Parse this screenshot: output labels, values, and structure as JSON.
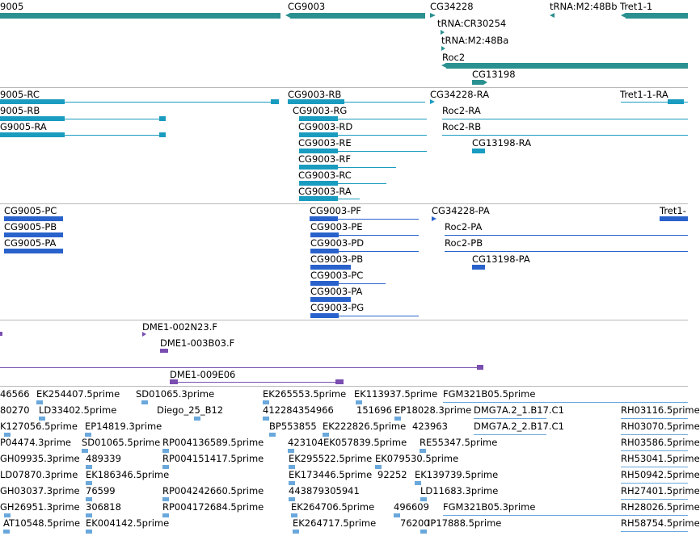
{
  "colors": {
    "gene": "#2a9090",
    "transcript": "#1a9cc0",
    "protein": "#2a62cc",
    "clone": "#7a4db0",
    "est": "#6aa8dc",
    "separator": "#b8b8b8"
  },
  "gene_track": {
    "labels": [
      "9005",
      "CG9003",
      "CG34228",
      "tRNA:M2:48Bb",
      "Tret1-1",
      "tRNA:CR30254",
      "tRNA:M2:48Ba",
      "Roc2",
      "CG13198"
    ]
  },
  "transcript_track": {
    "labels": [
      "9005-RC",
      "9005-RB",
      "G9005-RA",
      "CG9003-RB",
      "CG9003-RG",
      "CG9003-RD",
      "CG9003-RE",
      "CG9003-RF",
      "CG9003-RC",
      "CG9003-RA",
      "CG34228-RA",
      "Roc2-RA",
      "Roc2-RB",
      "CG13198-RA",
      "Tret1-1-RA"
    ]
  },
  "protein_track": {
    "labels": [
      "CG9005-PC",
      "CG9005-PB",
      "CG9005-PA",
      "CG9003-PF",
      "CG9003-PE",
      "CG9003-PD",
      "CG9003-PB",
      "CG9003-PC",
      "CG9003-PA",
      "CG9003-PG",
      "CG34228-PA",
      "Roc2-PA",
      "Roc2-PB",
      "CG13198-PA",
      "Tret1-"
    ]
  },
  "clone_track": {
    "labels": [
      "DME1-002N23.F",
      "DME1-003B03.F",
      "DME1-009E06"
    ]
  },
  "est_track": {
    "labels": [
      "46566",
      "EK254407.5prime",
      "SD01065.3prime",
      "EK265553.5prime",
      "EK113937.5prime",
      "FGM321B05.5prime",
      "80270",
      "LD33402.5prime",
      "Diego_25_B12",
      "412284354966",
      "151696",
      "EP18028.3prime",
      "DMG7A.2_1.B17.C1",
      "RH03116.5prime",
      "K127056.5prime",
      "EP14819.3prime",
      "BP553855",
      "EK222826.5prime",
      "423963",
      "DMG7A.2_2.B17.C1",
      "RH03070.5prime",
      "P04474.3prime",
      "SD01065.5prime",
      "RP004136589.5prime",
      "423104",
      "EK057839.5prime",
      "RE55347.5prime",
      "RH03586.5prime",
      "GH09935.3prime",
      "489339",
      "RP004151417.5prime",
      "EK295522.5prime",
      "EK079530.5prime",
      "RH53041.5prime",
      "LD07870.3prime",
      "EK186346.5prime",
      "EK173446.5prime",
      "92252",
      "EK139739.5prime",
      "RH50942.5prime",
      "GH03037.3prime",
      "76599",
      "RP004242660.5prime",
      "443879305941",
      "LD11683.3prime",
      "RH27401.5prime",
      "GH26951.3prime",
      "306818",
      "RP004172684.5prime",
      "EK264706.5prime",
      "496609",
      "FGM321B05.3prime",
      "RH28026.5prime",
      "AT10548.5prime",
      "EK004142.5prime",
      "EK264717.5prime",
      "76200",
      "IP17888.5prime",
      "RH58754.5prime"
    ]
  }
}
